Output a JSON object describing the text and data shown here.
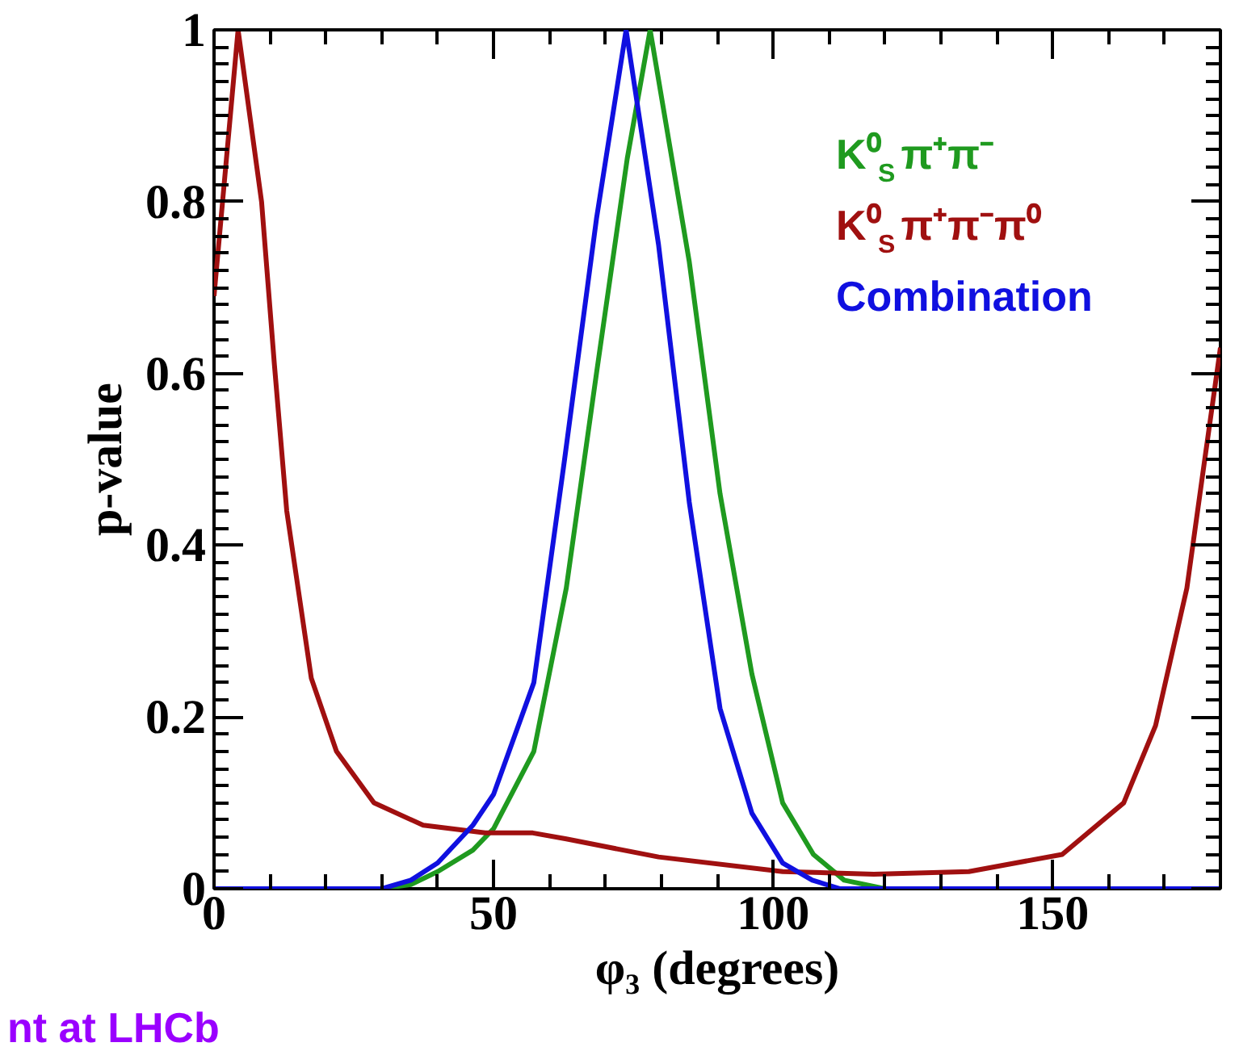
{
  "chart_data": {
    "type": "line",
    "xlabel": "φ₃ (degrees)",
    "ylabel": "p-value",
    "xlim": [
      0,
      180
    ],
    "ylim": [
      0,
      1
    ],
    "xticks": [
      0,
      50,
      100,
      150
    ],
    "yticks": [
      0,
      {
        "value": 0.2,
        "label": "0.2"
      },
      {
        "value": 0.4,
        "label": "0.4"
      },
      {
        "value": 0.6,
        "label": "0.6"
      },
      {
        "value": 0.8,
        "label": "0.8"
      },
      1
    ],
    "grid": false,
    "legend": "top right",
    "line_style": "solid",
    "marker": "none",
    "series": [
      {
        "name": "K⁰$_{S}$π⁺π⁻",
        "color": "#1f9a1f",
        "x": [
          0,
          20,
          30,
          35.2,
          40,
          46.3,
          50,
          57.2,
          63,
          68.4,
          73.9,
          78,
          85,
          90.5,
          96.2,
          101.7,
          107.2,
          112.7,
          120,
          150,
          180
        ],
        "values": [
          0,
          0,
          0,
          0.005,
          0.02,
          0.045,
          0.07,
          0.16,
          0.35,
          0.6,
          0.85,
          1,
          0.73,
          0.46,
          0.25,
          0.1,
          0.04,
          0.01,
          0,
          0,
          0
        ]
      },
      {
        "name": "K⁰$_{S}$π⁺π⁻π⁰",
        "color": "#a01010",
        "x": [
          0,
          4.3,
          8.5,
          10.8,
          13,
          17.4,
          21.9,
          28.6,
          37.4,
          48.5,
          57,
          63,
          79.5,
          101.7,
          118,
          135,
          151.7,
          162.7,
          168.4,
          174,
          177.2,
          180
        ],
        "values": [
          0.69,
          1,
          0.8,
          0.61,
          0.44,
          0.245,
          0.16,
          0.1,
          0.074,
          0.065,
          0.065,
          0.058,
          0.037,
          0.02,
          0.017,
          0.02,
          0.04,
          0.1,
          0.19,
          0.35,
          0.5,
          0.63
        ]
      },
      {
        "name": "Combination",
        "color": "#1010e0",
        "x": [
          0,
          20,
          30,
          35.2,
          40,
          46.3,
          50,
          57.2,
          62.7,
          68.4,
          73.7,
          79.5,
          85,
          90.5,
          96.2,
          101.7,
          107,
          112,
          120,
          150,
          180
        ],
        "values": [
          0,
          0,
          0,
          0.01,
          0.03,
          0.074,
          0.11,
          0.24,
          0.5,
          0.78,
          1,
          0.75,
          0.45,
          0.21,
          0.088,
          0.03,
          0.01,
          0,
          0,
          0,
          0
        ]
      }
    ],
    "annotations": [
      "nt at LHCb"
    ]
  }
}
